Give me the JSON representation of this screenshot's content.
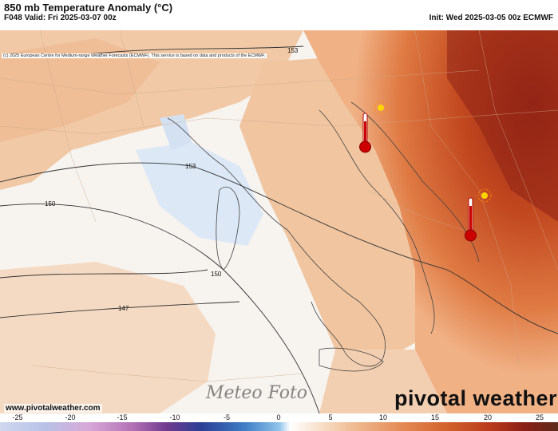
{
  "header": {
    "title": "850 mb Temperature Anomaly (°C)",
    "valid": "F048 Valid: Fri 2025-03-07 00z",
    "init": "Init: Wed 2025-03-05 00z ECMWF",
    "copyright": "(c) 2025 European Centre for Medium-range Weather Forecasts (ECMWF). This service is based on data and products of the ECMWF."
  },
  "map": {
    "contours": [
      "153",
      "153",
      "150",
      "150",
      "147"
    ],
    "colors": {
      "warm": "#e48a55",
      "hot": "#b83a1c",
      "cool": "#dde8f6",
      "sea": "#ffffff"
    },
    "icons": [
      "thermometer-icon",
      "thermometer-icon",
      "sun-icon",
      "sun-icon"
    ]
  },
  "footer": {
    "website": "www.pivotalweather.com",
    "brand": "pivotal weather",
    "watermark": "Meteo Foto"
  },
  "colorbar": {
    "labels": [
      "-25",
      "-20",
      "-15",
      "-10",
      "-5",
      "0",
      "5",
      "10",
      "15",
      "20",
      "25"
    ]
  }
}
